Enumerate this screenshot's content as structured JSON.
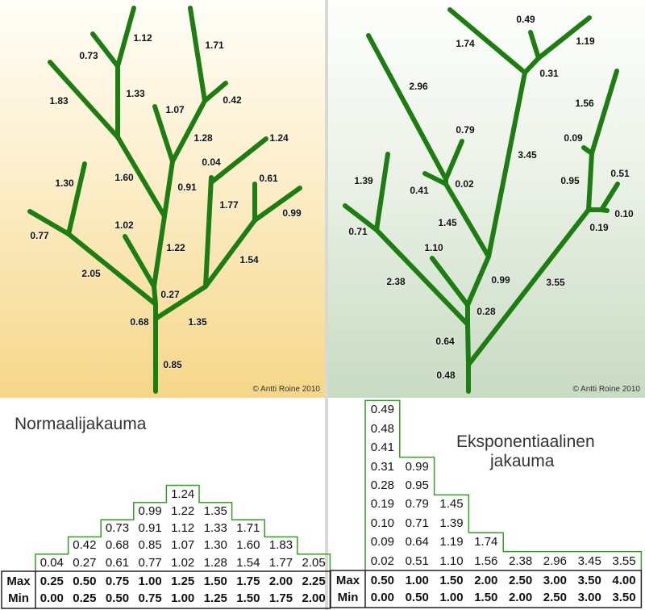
{
  "copyright": "© Antti Roine 2010",
  "colors": {
    "branch": "#1e7d12",
    "outline": "#3a9a2a",
    "left_bg": "#f6d789",
    "right_bg": "#c8dbc3"
  },
  "trees": {
    "left": {
      "branches": [
        "0.85",
        "1.35",
        "1.54",
        "0.99",
        "0.61",
        "1.77",
        "0.04",
        "1.24",
        "0.68",
        "2.05",
        "0.77",
        "1.30",
        "0.27",
        "1.02",
        "1.22",
        "1.60",
        "0.91",
        "1.07",
        "1.28",
        "0.42",
        "1.71",
        "1.83",
        "1.33",
        "0.73",
        "1.12"
      ]
    },
    "right": {
      "branches": [
        "0.48",
        "3.55",
        "0.19",
        "0.10",
        "0.51",
        "0.95",
        "0.09",
        "1.56",
        "0.64",
        "2.38",
        "0.71",
        "1.39",
        "0.28",
        "1.10",
        "0.99",
        "1.45",
        "0.41",
        "0.02",
        "0.79",
        "2.96",
        "3.45",
        "1.74",
        "0.31",
        "0.49",
        "1.19"
      ]
    }
  },
  "tables": {
    "normal": {
      "title": [
        "Normaalijakauma"
      ],
      "columns": [
        [
          "0.04"
        ],
        [
          "0.27",
          "0.42"
        ],
        [
          "0.61",
          "0.68",
          "0.73"
        ],
        [
          "0.77",
          "0.85",
          "0.91",
          "0.99"
        ],
        [
          "1.02",
          "1.07",
          "1.12",
          "1.22",
          "1.24"
        ],
        [
          "1.28",
          "1.30",
          "1.33",
          "1.35"
        ],
        [
          "1.54",
          "1.60",
          "1.71"
        ],
        [
          "1.77",
          "1.83"
        ],
        [
          "2.05"
        ]
      ],
      "max_label": "Max",
      "min_label": "Min",
      "max": [
        "0.25",
        "0.50",
        "0.75",
        "1.00",
        "1.25",
        "1.50",
        "1.75",
        "2.00",
        "2.25"
      ],
      "min": [
        "0.00",
        "0.25",
        "0.50",
        "0.75",
        "1.00",
        "1.25",
        "1.50",
        "1.75",
        "2.00"
      ]
    },
    "exponential": {
      "title": [
        "Eksponentiaalinen",
        "jakauma"
      ],
      "columns": [
        [
          "0.02",
          "0.09",
          "0.10",
          "0.19",
          "0.28",
          "0.31",
          "0.41",
          "0.48",
          "0.49"
        ],
        [
          "0.51",
          "0.64",
          "0.71",
          "0.79",
          "0.95",
          "0.99"
        ],
        [
          "1.10",
          "1.19",
          "1.39",
          "1.45"
        ],
        [
          "1.56",
          "1.74"
        ],
        [
          "2.38"
        ],
        [
          "2.96"
        ],
        [
          "3.45"
        ],
        [
          "3.55"
        ]
      ],
      "max_label": "Max",
      "min_label": "Min",
      "max": [
        "0.50",
        "1.00",
        "1.50",
        "2.00",
        "2.50",
        "3.00",
        "3.50",
        "4.00"
      ],
      "min": [
        "0.00",
        "0.50",
        "1.00",
        "1.50",
        "2.00",
        "2.50",
        "3.00",
        "3.50"
      ]
    }
  }
}
